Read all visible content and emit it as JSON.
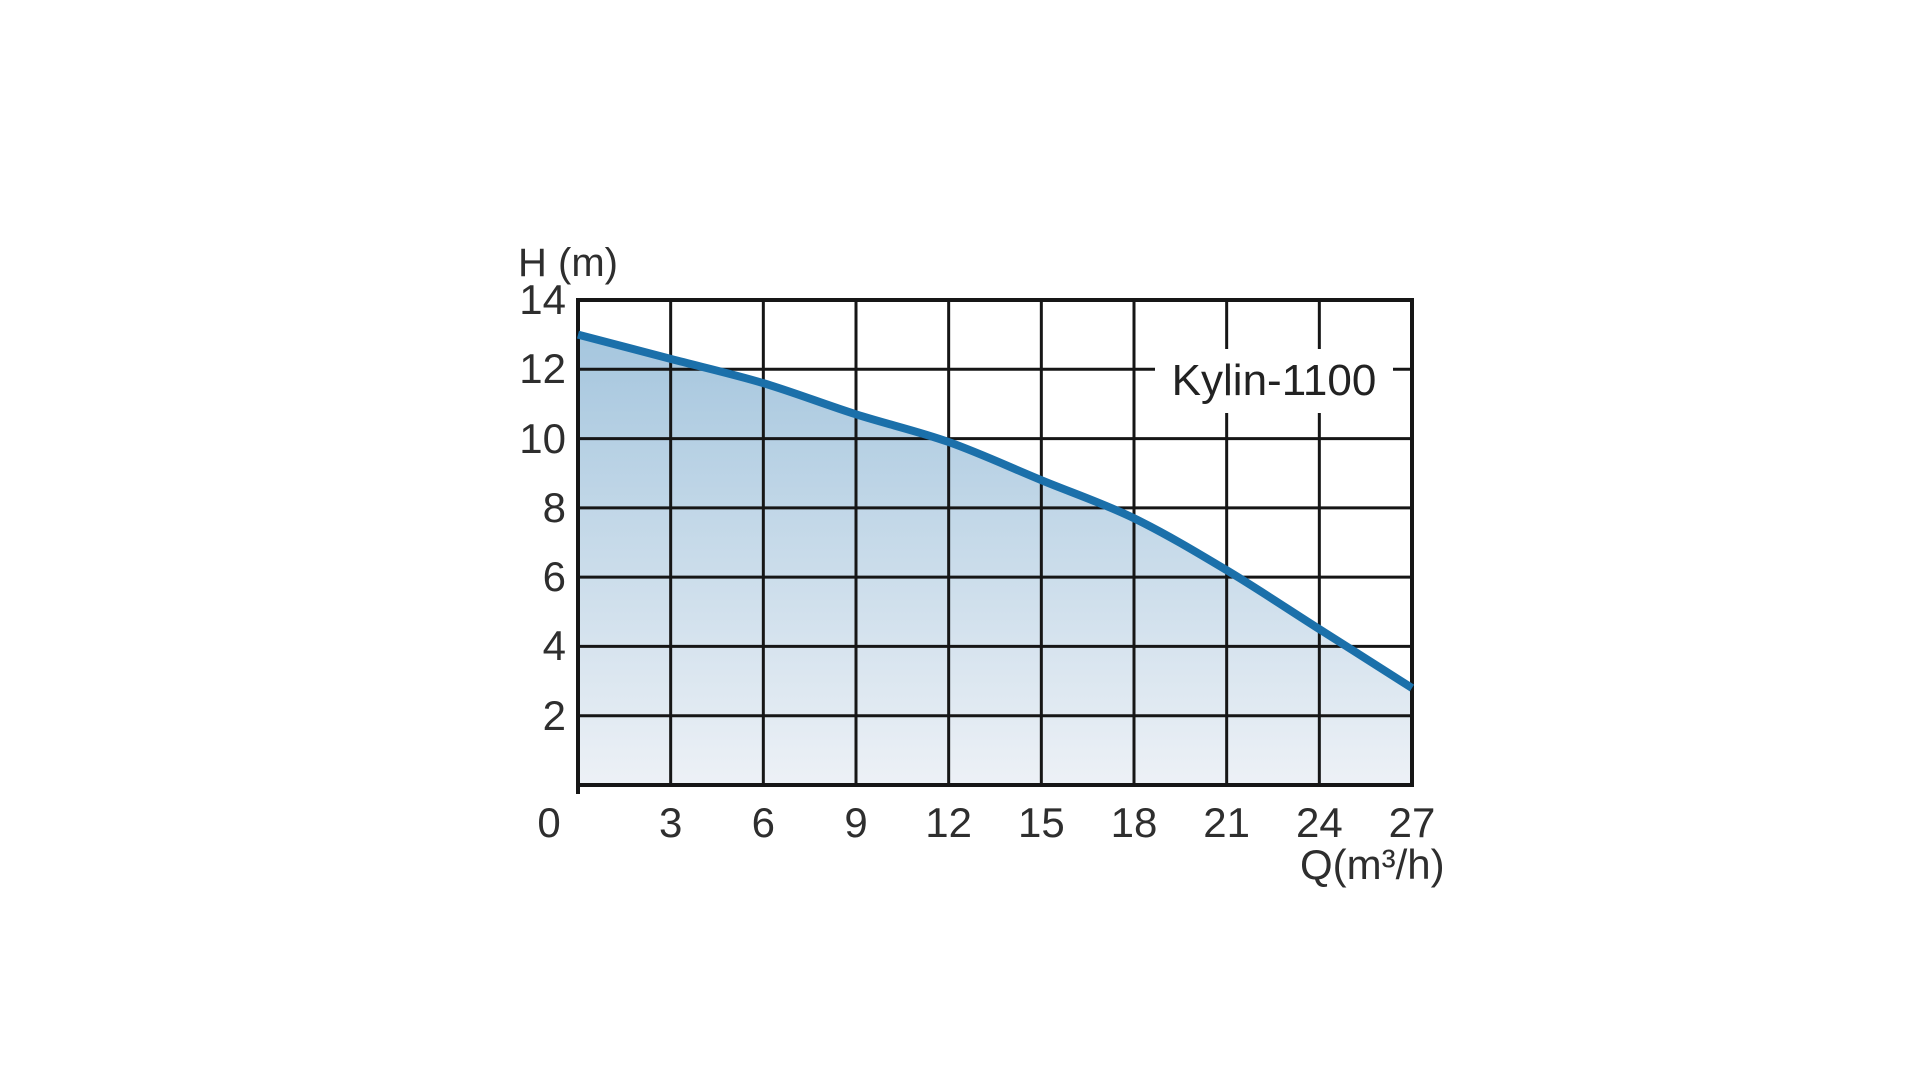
{
  "chart_data": {
    "type": "area",
    "title": "",
    "series_label": "Kylin-1100",
    "xlabel": "Q(m³/h)",
    "ylabel": "H (m)",
    "x": [
      0,
      3,
      6,
      9,
      12,
      15,
      18,
      21,
      24,
      27
    ],
    "y": [
      13.0,
      12.3,
      11.6,
      10.7,
      9.9,
      8.8,
      7.7,
      6.2,
      4.5,
      2.8
    ],
    "xlim": [
      0,
      27
    ],
    "ylim": [
      0,
      14
    ],
    "x_ticks": [
      0,
      3,
      6,
      9,
      12,
      15,
      18,
      21,
      24,
      27
    ],
    "y_ticks": [
      2,
      4,
      6,
      8,
      10,
      12,
      14
    ],
    "grid": true,
    "legend_position": "inside-top-right",
    "colors": {
      "line": "#1b70aa",
      "fill_top": "#a5c6de",
      "fill_bottom": "#edf1f6",
      "grid": "#161616",
      "text": "#2e2e2e",
      "label_box_bg": "#ffffff"
    }
  }
}
